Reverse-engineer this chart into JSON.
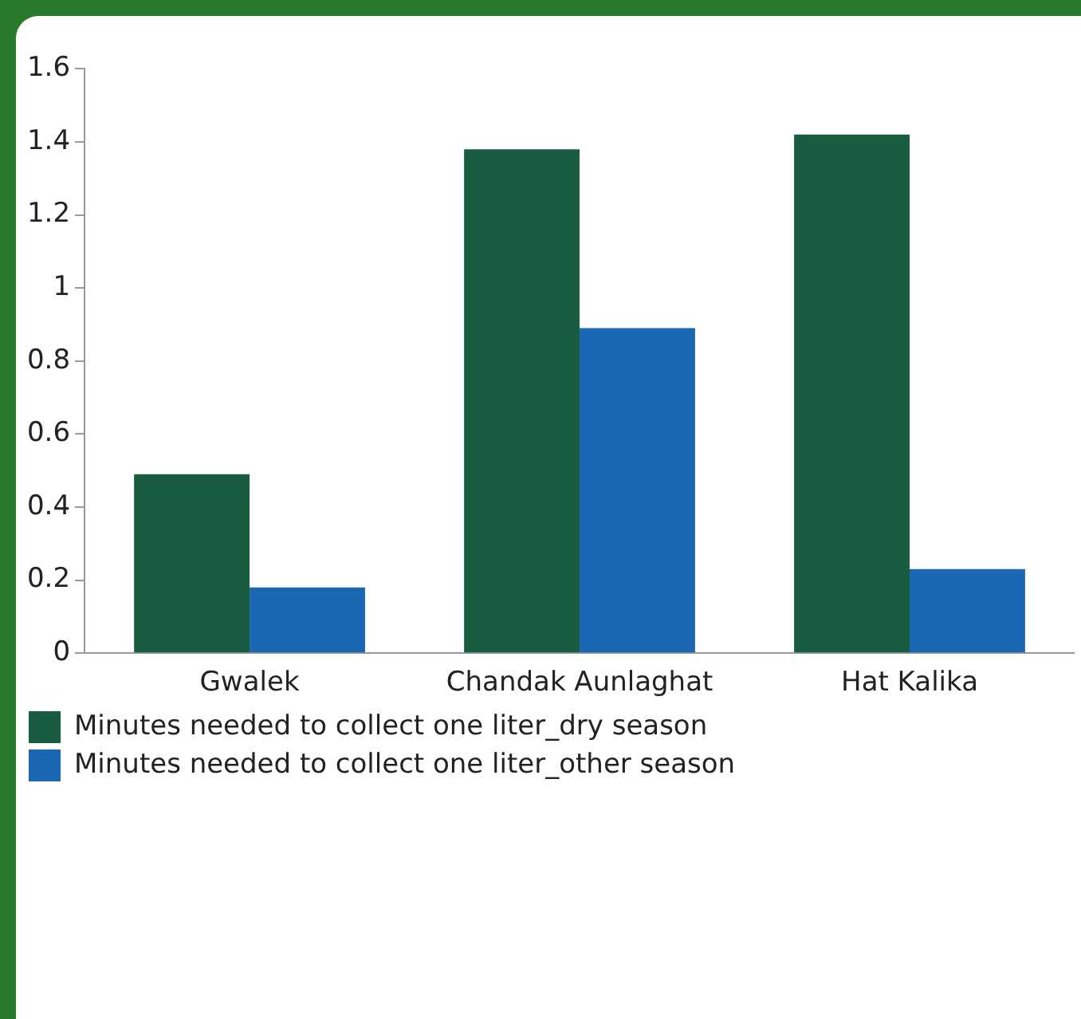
{
  "chart_data": {
    "type": "bar",
    "categories": [
      "Gwalek",
      "Chandak Aunlaghat",
      "Hat Kalika"
    ],
    "series": [
      {
        "name": "Minutes needed to collect one liter_dry season",
        "color": "#1a5c40",
        "values": [
          0.49,
          1.38,
          1.42
        ]
      },
      {
        "name": "Minutes needed to collect one liter_other season",
        "color": "#1a68b4",
        "values": [
          0.18,
          0.89,
          0.23
        ]
      }
    ],
    "ylim": [
      0,
      1.6
    ],
    "yticks": [
      0,
      0.2,
      0.4,
      0.6,
      0.8,
      1,
      1.2,
      1.4,
      1.6
    ],
    "grid": false,
    "legend": "bottom"
  }
}
